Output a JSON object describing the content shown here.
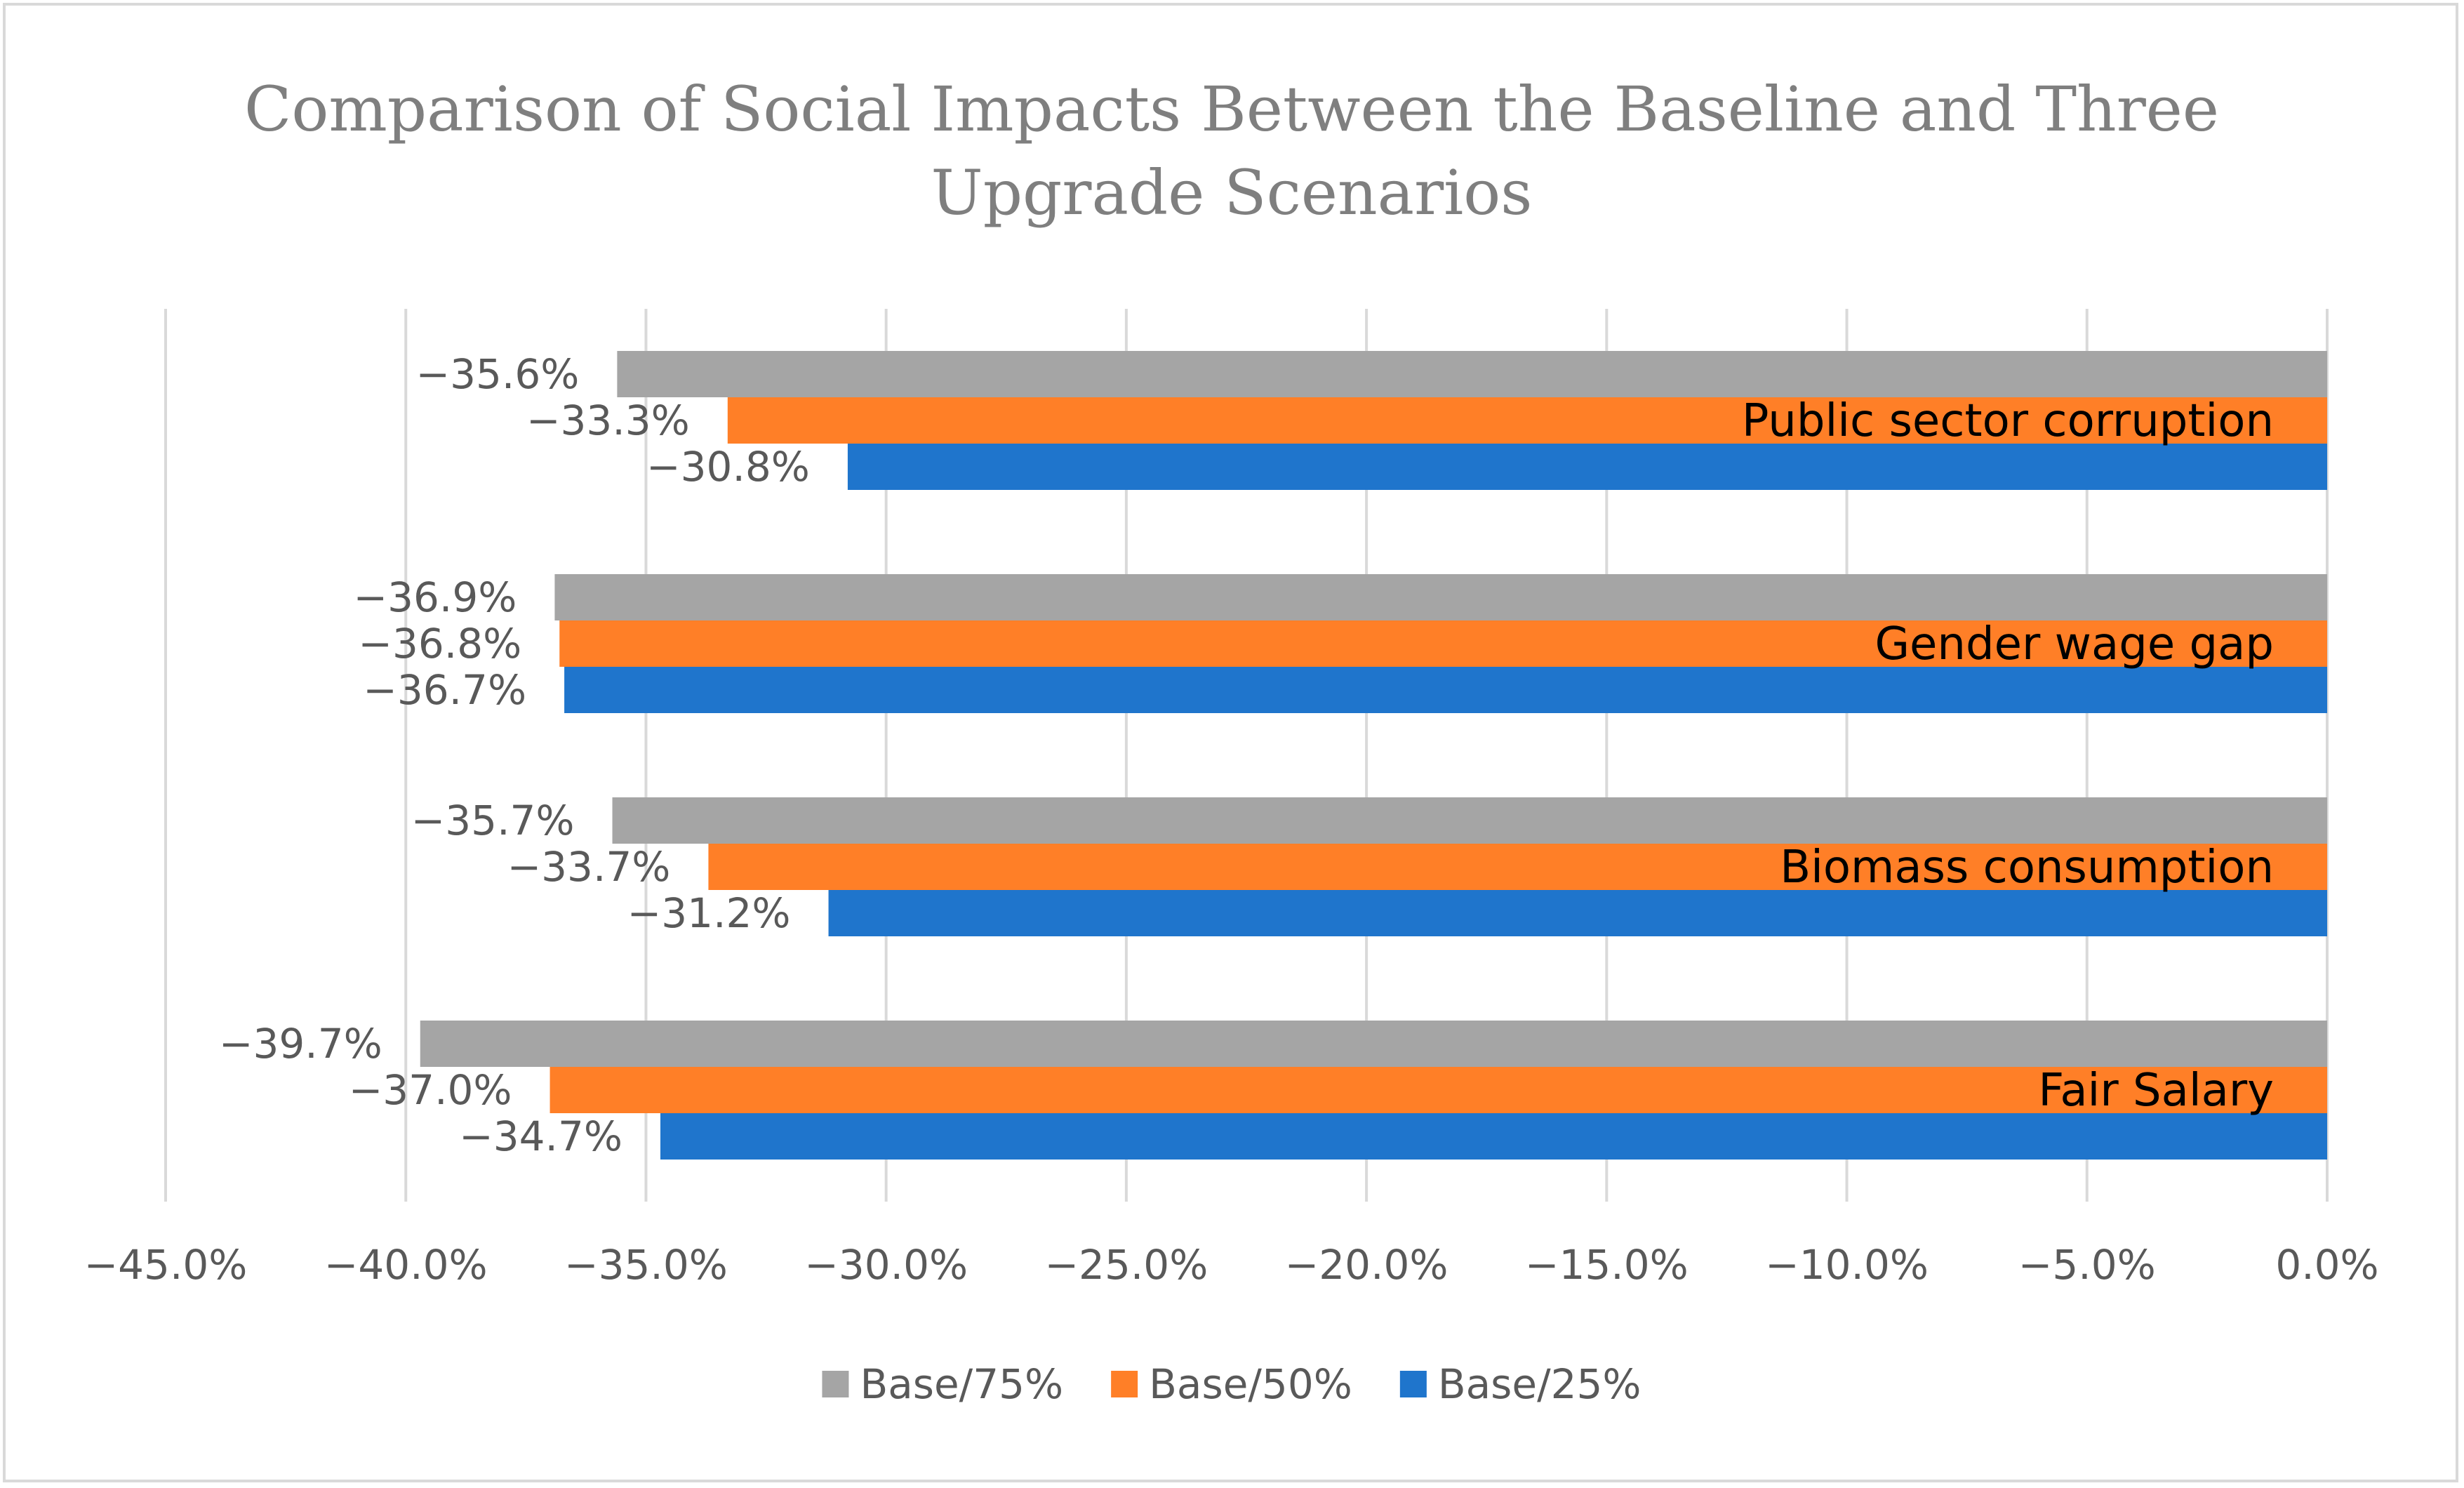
{
  "chart_data": {
    "type": "bar",
    "orientation": "horizontal",
    "title": "Comparison of Social Impacts Between the Baseline and Three Upgrade Scenarios",
    "title_lines": [
      "Comparison of Social Impacts Between the Baseline and Three",
      "Upgrade Scenarios"
    ],
    "categories": [
      "Public sector corruption",
      "Gender wage gap",
      "Biomass consumption",
      "Fair Salary"
    ],
    "series": [
      {
        "name": "Base/75%",
        "color": "#a5a5a5",
        "values": [
          -35.6,
          -36.9,
          -35.7,
          -39.7
        ],
        "labels": [
          "−35.6%",
          "−36.9%",
          "−35.7%",
          "−39.7%"
        ]
      },
      {
        "name": "Base/50%",
        "color": "#ff7f27",
        "values": [
          -33.3,
          -36.8,
          -33.7,
          -37.0
        ],
        "labels": [
          "−33.3%",
          "−36.8%",
          "−33.7%",
          "−37.0%"
        ]
      },
      {
        "name": "Base/25%",
        "color": "#1f75cc",
        "values": [
          -30.8,
          -36.7,
          -31.2,
          -34.7
        ],
        "labels": [
          "−30.8%",
          "−36.7%",
          "−31.2%",
          "−34.7%"
        ]
      }
    ],
    "xlim": [
      -45.0,
      0.0
    ],
    "xticks": [
      -45,
      -40,
      -35,
      -30,
      -25,
      -20,
      -15,
      -10,
      -5,
      0
    ],
    "xtick_labels": [
      "−45.0%",
      "−40.0%",
      "−35.0%",
      "−30.0%",
      "−25.0%",
      "−20.0%",
      "−15.0%",
      "−10.0%",
      "−5.0%",
      "0.0%"
    ],
    "grid": true,
    "legend_position": "bottom",
    "xlabel": "",
    "ylabel": ""
  }
}
